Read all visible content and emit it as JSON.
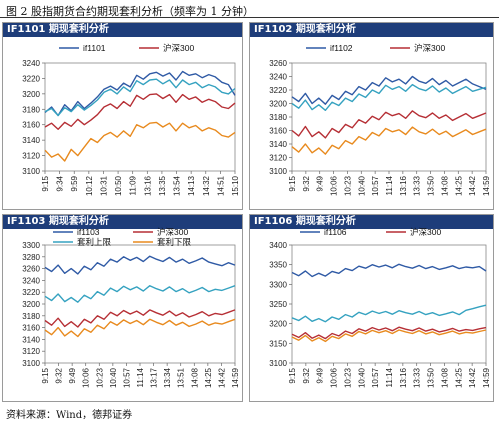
{
  "figure": {
    "title": "图 2 股指期货合约期现套利分析（频率为 1 分钟）",
    "source": "资料来源：Wind，德邦证券"
  },
  "colors": {
    "blue": "#2f5aa5",
    "red": "#b62f35",
    "teal": "#35a2c0",
    "orange": "#e88a1e",
    "header": "#1e3d7a"
  },
  "chart_data": [
    {
      "id": "if1101",
      "type": "line",
      "title": "IF1101 期现套利分析",
      "ylim": [
        3100,
        3240
      ],
      "yticks": [
        3100,
        3120,
        3140,
        3160,
        3180,
        3200,
        3220,
        3240
      ],
      "x_labels": [
        "9:15",
        "9:34",
        "9:59",
        "10:12",
        "10:31",
        "10:50",
        "11:09",
        "13:16",
        "13:35",
        "13:54",
        "14:13",
        "14:32",
        "14:51",
        "15:10"
      ],
      "series": [
        {
          "name": "if1101",
          "color": "blue",
          "legend": true,
          "values": [
            3176,
            3183,
            3172,
            3186,
            3178,
            3190,
            3181,
            3188,
            3196,
            3206,
            3210,
            3205,
            3214,
            3209,
            3224,
            3219,
            3226,
            3228,
            3223,
            3227,
            3218,
            3229,
            3224,
            3226,
            3221,
            3225,
            3222,
            3215,
            3212,
            3198
          ]
        },
        {
          "name": "沪深300",
          "color": "red",
          "legend": true,
          "values": [
            3157,
            3162,
            3154,
            3163,
            3158,
            3167,
            3160,
            3166,
            3173,
            3183,
            3187,
            3181,
            3190,
            3184,
            3198,
            3193,
            3199,
            3200,
            3194,
            3199,
            3189,
            3199,
            3193,
            3196,
            3189,
            3193,
            3190,
            3183,
            3181,
            3188
          ]
        },
        {
          "name": "",
          "color": "teal",
          "legend": false,
          "values": [
            3177,
            3181,
            3172,
            3182,
            3177,
            3186,
            3179,
            3185,
            3192,
            3202,
            3206,
            3200,
            3209,
            3203,
            3217,
            3212,
            3218,
            3219,
            3213,
            3218,
            3208,
            3218,
            3212,
            3215,
            3208,
            3212,
            3209,
            3202,
            3200,
            3207
          ]
        },
        {
          "name": "",
          "color": "orange",
          "legend": false,
          "values": [
            3127,
            3118,
            3122,
            3113,
            3128,
            3120,
            3131,
            3142,
            3137,
            3146,
            3150,
            3144,
            3152,
            3145,
            3160,
            3156,
            3162,
            3163,
            3157,
            3162,
            3152,
            3162,
            3156,
            3159,
            3152,
            3156,
            3153,
            3146,
            3144,
            3150
          ]
        }
      ]
    },
    {
      "id": "if1102",
      "type": "line",
      "title": "IF1102 期现套利分析",
      "ylim": [
        3100,
        3260
      ],
      "yticks": [
        3100,
        3120,
        3140,
        3160,
        3180,
        3200,
        3220,
        3240,
        3260
      ],
      "x_labels": [
        "9:15",
        "9:32",
        "9:49",
        "10:06",
        "10:23",
        "10:40",
        "10:57",
        "11:14",
        "13:16",
        "13:33",
        "13:50",
        "14:08",
        "14:25",
        "14:42",
        "14:59"
      ],
      "series": [
        {
          "name": "if1102",
          "color": "blue",
          "legend": true,
          "values": [
            3210,
            3203,
            3215,
            3200,
            3208,
            3199,
            3212,
            3206,
            3218,
            3213,
            3225,
            3220,
            3231,
            3226,
            3238,
            3232,
            3236,
            3229,
            3240,
            3233,
            3230,
            3237,
            3228,
            3234,
            3226,
            3231,
            3236,
            3229,
            3225,
            3221
          ]
        },
        {
          "name": "沪深300",
          "color": "red",
          "legend": true,
          "values": [
            3160,
            3152,
            3166,
            3151,
            3158,
            3149,
            3163,
            3157,
            3169,
            3164,
            3176,
            3171,
            3181,
            3176,
            3187,
            3182,
            3185,
            3178,
            3189,
            3182,
            3179,
            3186,
            3178,
            3183,
            3175,
            3180,
            3185,
            3178,
            3182,
            3186
          ]
        },
        {
          "name": "",
          "color": "teal",
          "legend": false,
          "values": [
            3200,
            3193,
            3205,
            3191,
            3198,
            3190,
            3202,
            3197,
            3208,
            3203,
            3214,
            3209,
            3220,
            3215,
            3227,
            3221,
            3225,
            3218,
            3228,
            3222,
            3219,
            3226,
            3217,
            3223,
            3215,
            3220,
            3225,
            3218,
            3221,
            3224
          ]
        },
        {
          "name": "",
          "color": "orange",
          "legend": false,
          "values": [
            3136,
            3128,
            3140,
            3127,
            3134,
            3125,
            3138,
            3133,
            3145,
            3140,
            3151,
            3146,
            3157,
            3152,
            3163,
            3158,
            3161,
            3154,
            3165,
            3158,
            3155,
            3162,
            3154,
            3159,
            3151,
            3156,
            3161,
            3154,
            3158,
            3162
          ]
        }
      ]
    },
    {
      "id": "if1103",
      "type": "line",
      "title": "IF1103 期现套利分析",
      "ylim": [
        3100,
        3300
      ],
      "yticks": [
        3100,
        3120,
        3140,
        3160,
        3180,
        3200,
        3220,
        3240,
        3260,
        3280,
        3300
      ],
      "x_labels": [
        "9:15",
        "9:32",
        "9:49",
        "10:06",
        "10:23",
        "10:40",
        "10:57",
        "11:14",
        "13:17",
        "13:34",
        "13:51",
        "14:08",
        "14:25",
        "14:42",
        "14:59"
      ],
      "series": [
        {
          "name": "if1103",
          "color": "blue",
          "legend": true,
          "values": [
            3262,
            3255,
            3266,
            3252,
            3260,
            3251,
            3264,
            3258,
            3270,
            3264,
            3276,
            3271,
            3280,
            3274,
            3279,
            3272,
            3281,
            3276,
            3272,
            3279,
            3271,
            3276,
            3269,
            3273,
            3278,
            3271,
            3268,
            3265,
            3270,
            3266
          ]
        },
        {
          "name": "沪深300",
          "color": "red",
          "legend": true,
          "values": [
            3172,
            3164,
            3176,
            3162,
            3170,
            3161,
            3174,
            3168,
            3180,
            3174,
            3186,
            3180,
            3189,
            3183,
            3188,
            3181,
            3190,
            3185,
            3181,
            3188,
            3180,
            3185,
            3178,
            3182,
            3187,
            3180,
            3184,
            3182,
            3186,
            3190
          ]
        },
        {
          "name": "套利上限",
          "color": "teal",
          "legend": true,
          "values": [
            3213,
            3206,
            3217,
            3204,
            3211,
            3203,
            3215,
            3209,
            3221,
            3215,
            3227,
            3221,
            3230,
            3224,
            3229,
            3222,
            3231,
            3226,
            3222,
            3229,
            3221,
            3226,
            3219,
            3223,
            3228,
            3221,
            3225,
            3223,
            3227,
            3231
          ]
        },
        {
          "name": "套利下限",
          "color": "orange",
          "legend": true,
          "values": [
            3156,
            3148,
            3160,
            3146,
            3154,
            3145,
            3158,
            3152,
            3164,
            3158,
            3170,
            3164,
            3173,
            3167,
            3172,
            3165,
            3174,
            3169,
            3165,
            3172,
            3164,
            3169,
            3162,
            3166,
            3171,
            3164,
            3168,
            3166,
            3170,
            3174
          ]
        }
      ]
    },
    {
      "id": "if1106",
      "type": "line",
      "title": "IF1106 期现套利分析",
      "ylim": [
        3100,
        3400
      ],
      "yticks": [
        3100,
        3150,
        3200,
        3250,
        3300,
        3350,
        3400
      ],
      "x_labels": [
        "9:15",
        "9:32",
        "9:49",
        "10:06",
        "10:23",
        "10:40",
        "10:57",
        "11:14",
        "13:16",
        "13:33",
        "13:50",
        "14:08",
        "14:25",
        "14:42",
        "14:59"
      ],
      "series": [
        {
          "name": "if1106",
          "color": "blue",
          "legend": true,
          "values": [
            3330,
            3322,
            3334,
            3320,
            3328,
            3321,
            3333,
            3328,
            3340,
            3335,
            3346,
            3341,
            3350,
            3344,
            3349,
            3342,
            3351,
            3345,
            3341,
            3348,
            3340,
            3345,
            3338,
            3342,
            3347,
            3340,
            3344,
            3342,
            3345,
            3334
          ]
        },
        {
          "name": "沪深300",
          "color": "red",
          "legend": true,
          "values": [
            3173,
            3165,
            3177,
            3163,
            3171,
            3162,
            3175,
            3169,
            3181,
            3175,
            3187,
            3181,
            3190,
            3184,
            3189,
            3182,
            3191,
            3186,
            3182,
            3189,
            3181,
            3186,
            3179,
            3183,
            3188,
            3181,
            3185,
            3183,
            3187,
            3190
          ]
        },
        {
          "name": "",
          "color": "teal",
          "legend": false,
          "values": [
            3215,
            3208,
            3219,
            3206,
            3213,
            3205,
            3217,
            3211,
            3223,
            3217,
            3229,
            3223,
            3232,
            3226,
            3231,
            3224,
            3233,
            3228,
            3224,
            3231,
            3223,
            3228,
            3221,
            3225,
            3230,
            3223,
            3234,
            3238,
            3243,
            3247
          ]
        },
        {
          "name": "",
          "color": "orange",
          "legend": false,
          "values": [
            3166,
            3158,
            3170,
            3156,
            3164,
            3155,
            3168,
            3162,
            3174,
            3168,
            3180,
            3174,
            3183,
            3177,
            3182,
            3175,
            3184,
            3179,
            3175,
            3182,
            3174,
            3179,
            3172,
            3176,
            3181,
            3174,
            3178,
            3176,
            3180,
            3184
          ]
        }
      ]
    }
  ]
}
